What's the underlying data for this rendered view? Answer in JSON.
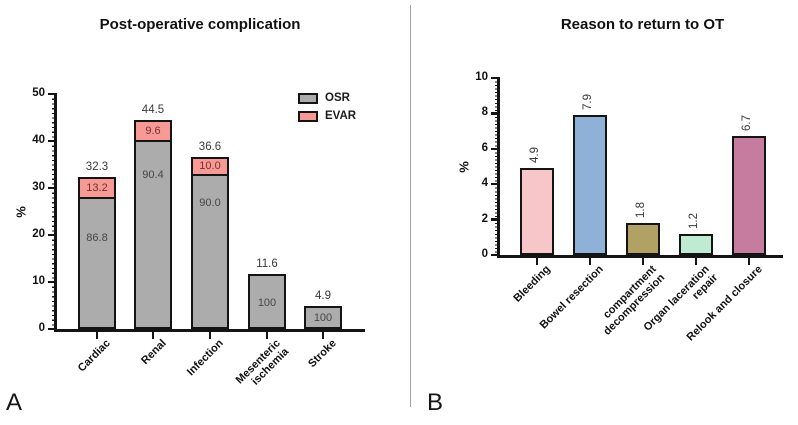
{
  "panels": {
    "a_letter": "A",
    "b_letter": "B"
  },
  "chart_data": [
    {
      "panel": "A",
      "type": "stacked-bar",
      "title": "Post-operative complication",
      "ylabel": "%",
      "ylim": [
        0,
        50
      ],
      "yticks": [
        "0",
        "10",
        "20",
        "30",
        "40",
        "50"
      ],
      "grid": false,
      "legend_position": "top-right",
      "categories": [
        "Cardiac",
        "Renal",
        "Infection",
        "Mesenteric\nischemia",
        "Stroke"
      ],
      "bar_totals": [
        "32.3",
        "44.5",
        "36.6",
        "11.6",
        "4.9"
      ],
      "series": [
        {
          "name": "OSR",
          "color": "#acacac",
          "label_color": "#474747",
          "pct_of_bar": [
            "86.8",
            "90.4",
            "90.0",
            "100",
            "100"
          ]
        },
        {
          "name": "EVAR",
          "color": "#f79a95",
          "label_color": "#76302f",
          "pct_of_bar": [
            "13.2",
            "9.6",
            "10.0",
            null,
            null
          ]
        }
      ]
    },
    {
      "panel": "B",
      "type": "bar",
      "title": "Reason to return to OT",
      "ylabel": "%",
      "ylim": [
        0,
        10
      ],
      "yticks": [
        "0",
        "2",
        "4",
        "6",
        "8",
        "10"
      ],
      "grid": false,
      "categories": [
        "Bleeding",
        "Bowel resection",
        "compartment\ndecompression",
        "Organ laceration\nrepair",
        "Relook and closure"
      ],
      "values": [
        "4.9",
        "7.9",
        "1.8",
        "1.2",
        "6.7"
      ],
      "bar_colors": [
        "#f7c6c9",
        "#8fb1d8",
        "#b1a164",
        "#beebd2",
        "#c67c9f"
      ]
    }
  ]
}
